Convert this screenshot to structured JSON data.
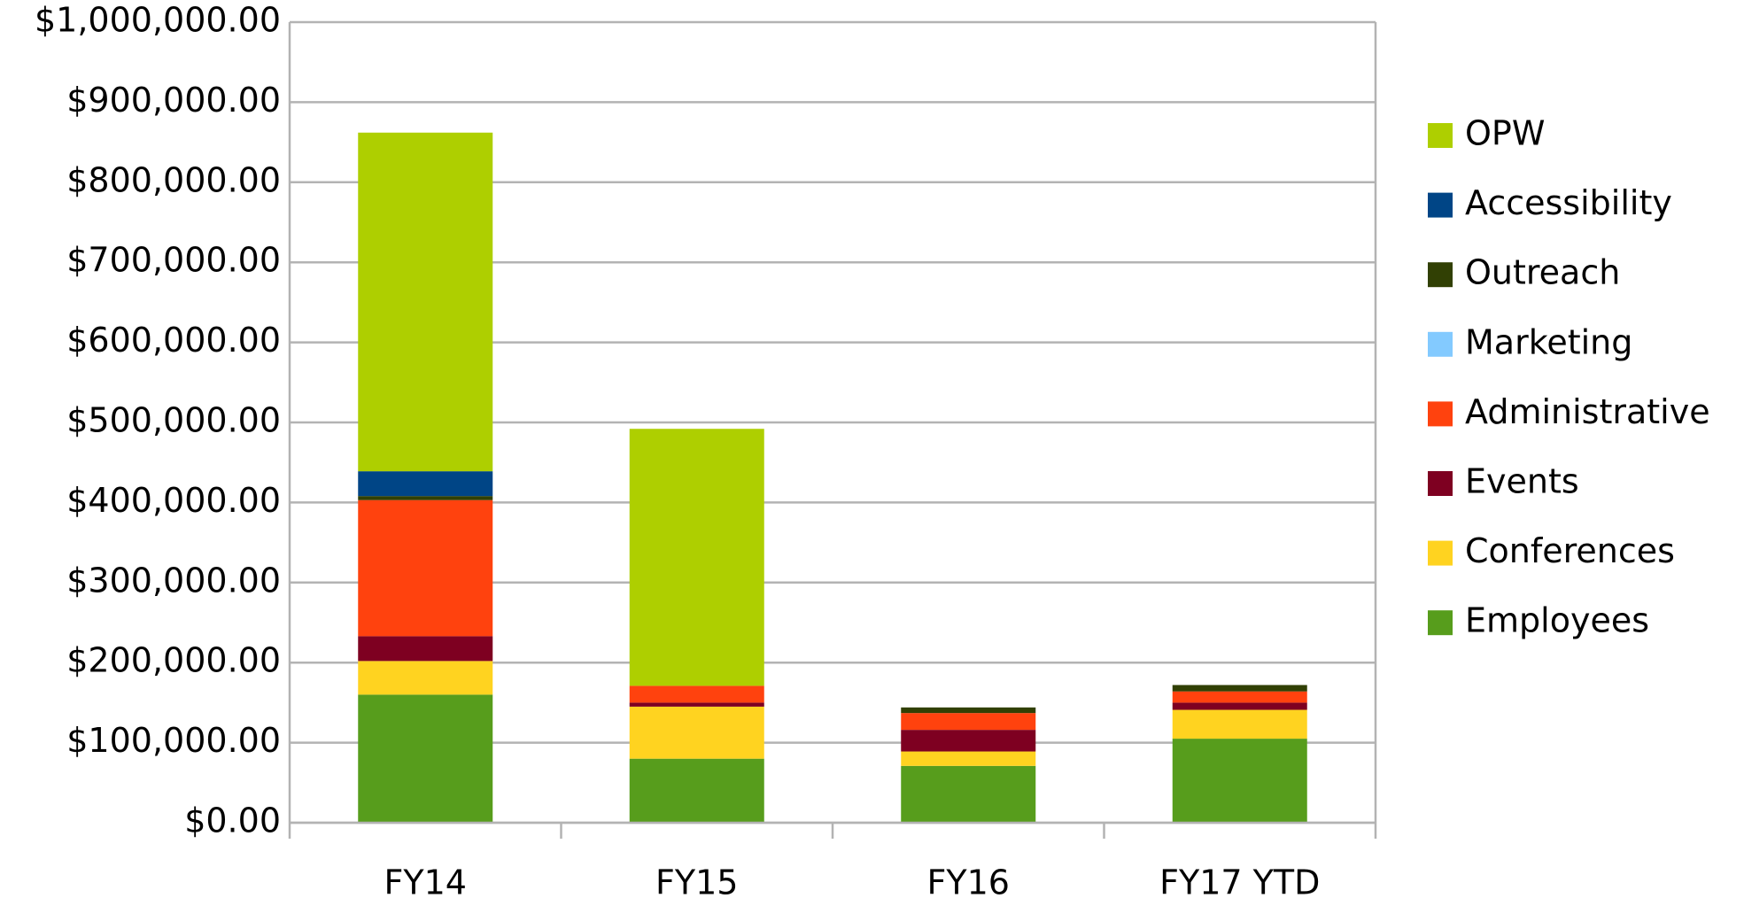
{
  "chart_data": {
    "type": "stacked_bar",
    "categories": [
      "FY14",
      "FY15",
      "FY16",
      "FY17 YTD"
    ],
    "series": [
      {
        "name": "Employees",
        "color": "#579d1c",
        "values": [
          160000,
          80000,
          71000,
          105000
        ]
      },
      {
        "name": "Conferences",
        "color": "#ffd320",
        "values": [
          42000,
          65000,
          18000,
          36000
        ]
      },
      {
        "name": "Events",
        "color": "#7e0021",
        "values": [
          31000,
          5000,
          27000,
          9000
        ]
      },
      {
        "name": "Administrative",
        "color": "#ff420e",
        "values": [
          170000,
          21000,
          21000,
          14000
        ]
      },
      {
        "name": "Marketing",
        "color": "#83caff",
        "values": [
          0,
          0,
          0,
          0
        ]
      },
      {
        "name": "Outreach",
        "color": "#314004",
        "values": [
          5000,
          0,
          7000,
          8000
        ]
      },
      {
        "name": "Accessibility",
        "color": "#004586",
        "values": [
          31000,
          0,
          0,
          0
        ]
      },
      {
        "name": "OPW",
        "color": "#aecf00",
        "values": [
          423000,
          321000,
          0,
          0
        ]
      }
    ],
    "ylim": [
      0,
      1000000
    ],
    "yticks": [
      {
        "value": 0,
        "label": "$0.00"
      },
      {
        "value": 100000,
        "label": "$100,000.00"
      },
      {
        "value": 200000,
        "label": "$200,000.00"
      },
      {
        "value": 300000,
        "label": "$300,000.00"
      },
      {
        "value": 400000,
        "label": "$400,000.00"
      },
      {
        "value": 500000,
        "label": "$500,000.00"
      },
      {
        "value": 600000,
        "label": "$600,000.00"
      },
      {
        "value": 700000,
        "label": "$700,000.00"
      },
      {
        "value": 800000,
        "label": "$800,000.00"
      },
      {
        "value": 900000,
        "label": "$900,000.00"
      },
      {
        "value": 1000000,
        "label": "$1,000,000.00"
      }
    ],
    "grid": true,
    "legend": "right"
  }
}
